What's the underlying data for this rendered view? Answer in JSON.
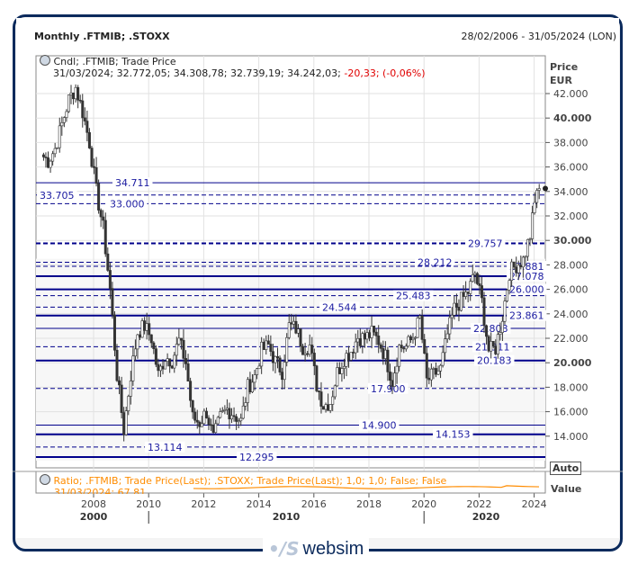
{
  "header": {
    "title": "Monthly .FTMIB; .STOXX",
    "date_range": "28/02/2006 - 31/05/2024 (LON)"
  },
  "legend": {
    "main": "Cndl; .FTMIB; Trade Price",
    "ohlc_date": "31/03/2024; 32.772,05; 34.308,78; 32.739,19; 34.242,03;",
    "change": "-20,33; (-0,06%)",
    "ratio": "Ratio; .FTMIB; Trade Price(Last); .STOXX; Trade Price(Last);  1,0; 1,0; False; False",
    "ratio_value": "31/03/2024; 67,81"
  },
  "axis": {
    "price_label": "Price",
    "currency": "EUR",
    "auto_button": "Auto",
    "lower_label": "Value"
  },
  "logo": {
    "mark": "•∕S",
    "word": "websim"
  },
  "colors": {
    "candle": "#333333",
    "levels": "#00008b",
    "ratio": "#ff8c00",
    "change": "#e00000",
    "frame": "#0b2a5c"
  },
  "chart_data": {
    "type": "candlestick",
    "title": "Monthly .FTMIB; .STOXX",
    "ylim": [
      12000,
      43000
    ],
    "yticks": [
      "42.000",
      "40.000",
      "38.000",
      "36.000",
      "34.000",
      "32.000",
      "30.000",
      "28.000",
      "26.000",
      "24.000",
      "22.000",
      "20.000",
      "18.000",
      "16.000",
      "14.000"
    ],
    "xticks": [
      "2008",
      "2010",
      "2012",
      "2014",
      "2016",
      "2018",
      "2020",
      "2022",
      "2024"
    ],
    "decades": [
      "2000",
      "2010",
      "2020"
    ],
    "quarterly_close_start": "2006-Q1",
    "quarterly_close": [
      37000,
      36500,
      37500,
      39500,
      41500,
      42500,
      40500,
      38000,
      34000,
      31000,
      26000,
      19000,
      14500,
      19000,
      22500,
      23000,
      22000,
      19000,
      20500,
      20200,
      21800,
      20000,
      15500,
      15100,
      16000,
      13800,
      15500,
      16200,
      15800,
      15200,
      18000,
      18900,
      21000,
      21400,
      20100,
      19300,
      23000,
      22800,
      21300,
      21400,
      18200,
      16500,
      16800,
      19200,
      20400,
      21000,
      22100,
      22000,
      22400,
      21800,
      20500,
      18500,
      21300,
      21300,
      22100,
      23600,
      18500,
      19000,
      19500,
      22300,
      24400,
      25100,
      25800,
      27300,
      25000,
      21000,
      21200,
      23800,
      27400,
      28000,
      28400,
      30400,
      34242
    ],
    "levels": [
      {
        "value": 34711,
        "label": "34.711",
        "style": "solid"
      },
      {
        "value": 33705,
        "label": "33.705",
        "style": "dashed"
      },
      {
        "value": 33000,
        "label": "33.000",
        "style": "dashed"
      },
      {
        "value": 29757,
        "label": "29.757",
        "style": "dashed-bold"
      },
      {
        "value": 28212,
        "label": "28.212",
        "style": "dashed"
      },
      {
        "value": 27881,
        "label": "27.881",
        "style": "dashed"
      },
      {
        "value": 27078,
        "label": "27.078",
        "style": "solid-bold"
      },
      {
        "value": 26000,
        "label": "26.000",
        "style": "solid-bold"
      },
      {
        "value": 25483,
        "label": "25.483",
        "style": "dashed"
      },
      {
        "value": 24544,
        "label": "24.544",
        "style": "dashed"
      },
      {
        "value": 23861,
        "label": "23.861",
        "style": "solid-bold"
      },
      {
        "value": 22808,
        "label": "22.808",
        "style": "solid"
      },
      {
        "value": 21311,
        "label": "21.311",
        "style": "dashed"
      },
      {
        "value": 20183,
        "label": "20.183",
        "style": "solid-bold"
      },
      {
        "value": 17900,
        "label": "17.900",
        "style": "dashed"
      },
      {
        "value": 14900,
        "label": "14.900",
        "style": "solid"
      },
      {
        "value": 14153,
        "label": "14.153",
        "style": "solid-bold"
      },
      {
        "value": 13114,
        "label": "13.114",
        "style": "dashed"
      },
      {
        "value": 12295,
        "label": "12.295",
        "style": "solid-bold"
      }
    ],
    "last_value": 34242,
    "ratio_last": 67.81
  }
}
